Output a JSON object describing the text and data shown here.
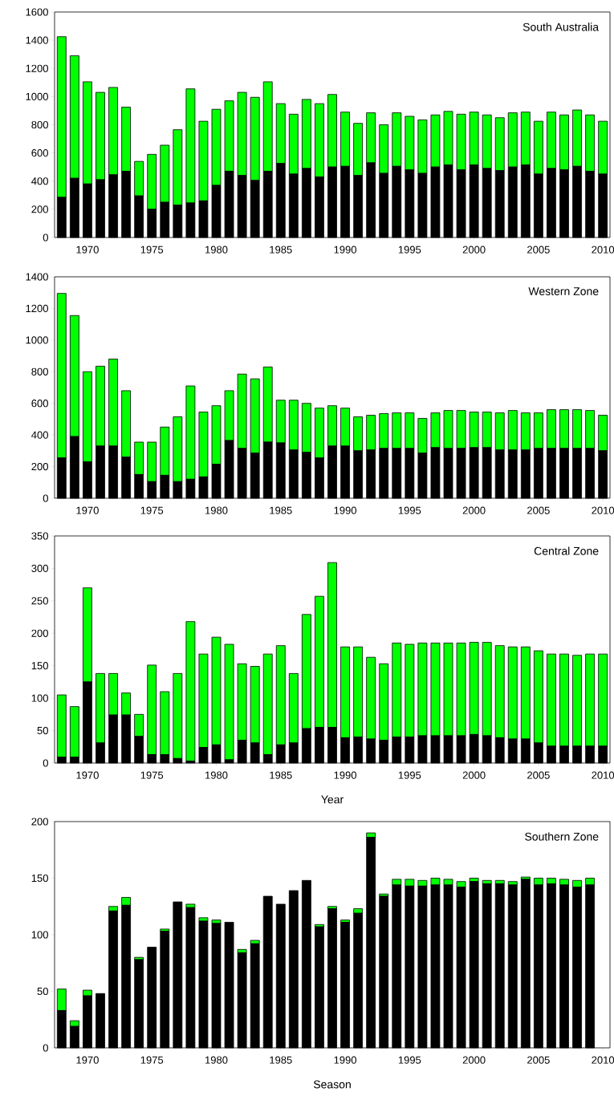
{
  "chart_data": [
    {
      "type": "bar",
      "stacked": true,
      "title": "South Australia",
      "x": [
        1968,
        1969,
        1970,
        1971,
        1972,
        1973,
        1974,
        1975,
        1976,
        1977,
        1978,
        1979,
        1980,
        1981,
        1982,
        1983,
        1984,
        1985,
        1986,
        1987,
        1988,
        1989,
        1990,
        1991,
        1992,
        1993,
        1994,
        1995,
        1996,
        1997,
        1998,
        1999,
        2000,
        2001,
        2002,
        2003,
        2004,
        2005,
        2006,
        2007,
        2008,
        2009,
        2010
      ],
      "series": [
        {
          "color": "#000000",
          "values": [
            285,
            420,
            380,
            410,
            445,
            470,
            295,
            200,
            250,
            230,
            245,
            260,
            370,
            470,
            440,
            405,
            470,
            525,
            450,
            490,
            430,
            500,
            505,
            440,
            530,
            455,
            505,
            480,
            455,
            500,
            515,
            480,
            515,
            490,
            475,
            500,
            515,
            450,
            490,
            480,
            505,
            470,
            450
          ]
        },
        {
          "color": "#00ff00",
          "values": [
            1140,
            870,
            725,
            620,
            620,
            455,
            245,
            390,
            405,
            535,
            810,
            565,
            540,
            500,
            590,
            590,
            635,
            425,
            425,
            490,
            520,
            515,
            385,
            370,
            355,
            345,
            380,
            380,
            380,
            370,
            380,
            395,
            375,
            380,
            375,
            385,
            375,
            375,
            400,
            390,
            400,
            400,
            375
          ]
        }
      ],
      "xlim": [
        1967.45,
        2010.55
      ],
      "ylim": [
        0,
        1600
      ],
      "xticks": [
        1970,
        1975,
        1980,
        1985,
        1990,
        1995,
        2000,
        2005,
        2010
      ],
      "yticks": [
        0,
        200,
        400,
        600,
        800,
        1000,
        1200,
        1400,
        1600
      ]
    },
    {
      "type": "bar",
      "stacked": true,
      "title": "Western Zone",
      "x": [
        1968,
        1969,
        1970,
        1971,
        1972,
        1973,
        1974,
        1975,
        1976,
        1977,
        1978,
        1979,
        1980,
        1981,
        1982,
        1983,
        1984,
        1985,
        1986,
        1987,
        1988,
        1989,
        1990,
        1991,
        1992,
        1993,
        1994,
        1995,
        1996,
        1997,
        1998,
        1999,
        2000,
        2001,
        2002,
        2003,
        2004,
        2005,
        2006,
        2007,
        2008,
        2009,
        2010
      ],
      "series": [
        {
          "color": "#000000",
          "values": [
            255,
            390,
            230,
            330,
            330,
            260,
            150,
            105,
            145,
            105,
            120,
            135,
            215,
            365,
            315,
            285,
            355,
            350,
            305,
            290,
            255,
            330,
            330,
            300,
            305,
            315,
            315,
            315,
            285,
            320,
            315,
            315,
            320,
            320,
            305,
            305,
            305,
            315,
            315,
            315,
            315,
            315,
            300
          ]
        },
        {
          "color": "#00ff00",
          "values": [
            1040,
            765,
            570,
            505,
            550,
            420,
            205,
            250,
            305,
            410,
            590,
            410,
            370,
            315,
            470,
            470,
            475,
            270,
            315,
            310,
            315,
            255,
            240,
            215,
            220,
            220,
            225,
            225,
            220,
            220,
            240,
            240,
            225,
            225,
            235,
            250,
            235,
            225,
            245,
            245,
            245,
            240,
            225
          ]
        }
      ],
      "xlim": [
        1967.45,
        2010.55
      ],
      "ylim": [
        0,
        1400
      ],
      "xticks": [
        1970,
        1975,
        1980,
        1985,
        1990,
        1995,
        2000,
        2005,
        2010
      ],
      "yticks": [
        0,
        200,
        400,
        600,
        800,
        1000,
        1200,
        1400
      ]
    },
    {
      "type": "bar",
      "stacked": true,
      "title": "Central Zone",
      "xlabel": "Year",
      "x": [
        1968,
        1969,
        1970,
        1971,
        1972,
        1973,
        1974,
        1975,
        1976,
        1977,
        1978,
        1979,
        1980,
        1981,
        1982,
        1983,
        1984,
        1985,
        1986,
        1987,
        1988,
        1989,
        1990,
        1991,
        1992,
        1993,
        1994,
        1995,
        1996,
        1997,
        1998,
        1999,
        2000,
        2001,
        2002,
        2003,
        2004,
        2005,
        2006,
        2007,
        2008,
        2009,
        2010
      ],
      "series": [
        {
          "color": "#000000",
          "values": [
            9,
            9,
            125,
            31,
            74,
            74,
            41,
            13,
            13,
            7,
            3,
            24,
            28,
            5,
            35,
            31,
            13,
            28,
            31,
            53,
            55,
            55,
            39,
            40,
            37,
            35,
            40,
            40,
            42,
            42,
            42,
            42,
            44,
            42,
            39,
            37,
            37,
            31,
            26,
            26,
            26,
            26,
            26
          ]
        },
        {
          "color": "#00ff00",
          "values": [
            96,
            78,
            145,
            107,
            64,
            34,
            34,
            138,
            97,
            131,
            215,
            144,
            166,
            178,
            118,
            118,
            155,
            153,
            107,
            176,
            202,
            254,
            140,
            139,
            126,
            118,
            145,
            143,
            143,
            143,
            143,
            143,
            142,
            144,
            142,
            142,
            142,
            142,
            142,
            142,
            140,
            142,
            142
          ]
        }
      ],
      "xlim": [
        1967.45,
        2010.55
      ],
      "ylim": [
        0,
        350
      ],
      "xticks": [
        1970,
        1975,
        1980,
        1985,
        1990,
        1995,
        2000,
        2005,
        2010
      ],
      "yticks": [
        0,
        50,
        100,
        150,
        200,
        250,
        300,
        350
      ]
    },
    {
      "type": "bar",
      "stacked": true,
      "title": "Southern Zone",
      "xlabel": "Season",
      "x": [
        1968,
        1969,
        1970,
        1971,
        1972,
        1973,
        1974,
        1975,
        1976,
        1977,
        1978,
        1979,
        1980,
        1981,
        1982,
        1983,
        1984,
        1985,
        1986,
        1987,
        1988,
        1989,
        1990,
        1991,
        1992,
        1993,
        1994,
        1995,
        1996,
        1997,
        1998,
        1999,
        2000,
        2001,
        2002,
        2003,
        2004,
        2005,
        2006,
        2007,
        2008,
        2009
      ],
      "series": [
        {
          "color": "#000000",
          "values": [
            33,
            19,
            46,
            48,
            121,
            126,
            78,
            89,
            103,
            129,
            124,
            112,
            110,
            111,
            84,
            92,
            134,
            127,
            139,
            148,
            107,
            123,
            111,
            119,
            186,
            134,
            144,
            143,
            143,
            144,
            144,
            142,
            147,
            145,
            145,
            144,
            149,
            144,
            145,
            144,
            142,
            144
          ]
        },
        {
          "color": "#00ff00",
          "values": [
            19,
            5,
            5,
            0,
            4,
            7,
            2,
            0,
            2,
            0,
            3,
            3,
            3,
            0,
            3,
            3,
            0,
            0,
            0,
            0,
            2,
            2,
            2,
            4,
            4,
            2,
            5,
            6,
            5,
            6,
            5,
            5,
            3,
            3,
            3,
            3,
            2,
            6,
            5,
            5,
            6,
            6
          ]
        }
      ],
      "xlim": [
        1967.45,
        2010.55
      ],
      "ylim": [
        0,
        200
      ],
      "xticks": [
        1970,
        1975,
        1980,
        1985,
        1990,
        1995,
        2000,
        2005,
        2010
      ],
      "yticks": [
        0,
        50,
        100,
        150,
        200
      ]
    }
  ]
}
